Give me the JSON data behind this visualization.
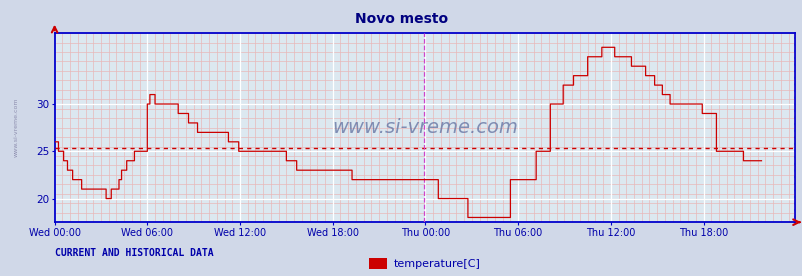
{
  "title": "Novo mesto",
  "title_color": "#000080",
  "title_fontsize": 10,
  "bg_color": "#d0d8e8",
  "plot_bg_color": "#dce8f0",
  "grid_color_major": "#ffffff",
  "grid_color_minor": "#e8b8b8",
  "line_color": "#cc0000",
  "axis_color": "#0000cc",
  "text_color": "#0000aa",
  "watermark_color": "#8888aa",
  "dotted_line_color": "#cc0000",
  "vline_color": "#cc44cc",
  "xticklabels": [
    "Wed 00:00",
    "Wed 06:00",
    "Wed 12:00",
    "Wed 18:00",
    "Thu 00:00",
    "Thu 06:00",
    "Thu 12:00",
    "Thu 18:00"
  ],
  "yticks": [
    20,
    25,
    30
  ],
  "ylim_min": 17.5,
  "ylim_max": 37.5,
  "xlim": [
    0,
    575
  ],
  "x_tick_positions": [
    0,
    72,
    144,
    216,
    288,
    360,
    432,
    504
  ],
  "dotted_hline_y": 25.3,
  "vline_x": 287,
  "vline_x2": 575,
  "footer_left": "CURRENT AND HISTORICAL DATA",
  "legend_label": "temperature[C]",
  "legend_color": "#cc0000",
  "watermark": "www.si-vreme.com",
  "sidewatermark": "www.si-vreme.com",
  "temperature_data": [
    26,
    26,
    26,
    25,
    25,
    25,
    25,
    24,
    24,
    24,
    23,
    23,
    23,
    23,
    22,
    22,
    22,
    22,
    22,
    22,
    22,
    21,
    21,
    21,
    21,
    21,
    21,
    21,
    21,
    21,
    21,
    21,
    21,
    21,
    21,
    21,
    21,
    21,
    21,
    21,
    20,
    20,
    20,
    20,
    21,
    21,
    21,
    21,
    21,
    21,
    22,
    22,
    23,
    23,
    23,
    23,
    24,
    24,
    24,
    24,
    24,
    24,
    25,
    25,
    25,
    25,
    25,
    25,
    25,
    25,
    25,
    25,
    30,
    30,
    31,
    31,
    31,
    31,
    30,
    30,
    30,
    30,
    30,
    30,
    30,
    30,
    30,
    30,
    30,
    30,
    30,
    30,
    30,
    30,
    30,
    30,
    29,
    29,
    29,
    29,
    29,
    29,
    29,
    29,
    28,
    28,
    28,
    28,
    28,
    28,
    28,
    27,
    27,
    27,
    27,
    27,
    27,
    27,
    27,
    27,
    27,
    27,
    27,
    27,
    27,
    27,
    27,
    27,
    27,
    27,
    27,
    27,
    27,
    27,
    27,
    26,
    26,
    26,
    26,
    26,
    26,
    26,
    26,
    25,
    25,
    25,
    25,
    25,
    25,
    25,
    25,
    25,
    25,
    25,
    25,
    25,
    25,
    25,
    25,
    25,
    25,
    25,
    25,
    25,
    25,
    25,
    25,
    25,
    25,
    25,
    25,
    25,
    25,
    25,
    25,
    25,
    25,
    25,
    25,
    25,
    24,
    24,
    24,
    24,
    24,
    24,
    24,
    24,
    23,
    23,
    23,
    23,
    23,
    23,
    23,
    23,
    23,
    23,
    23,
    23,
    23,
    23,
    23,
    23,
    23,
    23,
    23,
    23,
    23,
    23,
    23,
    23,
    23,
    23,
    23,
    23,
    23,
    23,
    23,
    23,
    23,
    23,
    23,
    23,
    23,
    23,
    23,
    23,
    23,
    23,
    23,
    22,
    22,
    22,
    22,
    22,
    22,
    22,
    22,
    22,
    22,
    22,
    22,
    22,
    22,
    22,
    22,
    22,
    22,
    22,
    22,
    22,
    22,
    22,
    22,
    22,
    22,
    22,
    22,
    22,
    22,
    22,
    22,
    22,
    22,
    22,
    22,
    22,
    22,
    22,
    22,
    22,
    22,
    22,
    22,
    22,
    22,
    22,
    22,
    22,
    22,
    22,
    22,
    22,
    22,
    22,
    22,
    22,
    22,
    22,
    22,
    22,
    22,
    22,
    22,
    22,
    22,
    22,
    20,
    20,
    20,
    20,
    20,
    20,
    20,
    20,
    20,
    20,
    20,
    20,
    20,
    20,
    20,
    20,
    20,
    20,
    20,
    20,
    20,
    20,
    20,
    18,
    18,
    18,
    18,
    18,
    18,
    18,
    18,
    18,
    18,
    18,
    18,
    18,
    18,
    18,
    18,
    18,
    18,
    18,
    18,
    18,
    18,
    18,
    18,
    18,
    18,
    18,
    18,
    18,
    18,
    18,
    18,
    18,
    22,
    22,
    22,
    22,
    22,
    22,
    22,
    22,
    22,
    22,
    22,
    22,
    22,
    22,
    22,
    22,
    22,
    22,
    22,
    22,
    25,
    25,
    25,
    25,
    25,
    25,
    25,
    25,
    25,
    25,
    25,
    30,
    30,
    30,
    30,
    30,
    30,
    30,
    30,
    30,
    30,
    32,
    32,
    32,
    32,
    32,
    32,
    32,
    32,
    33,
    33,
    33,
    33,
    33,
    33,
    33,
    33,
    33,
    33,
    33,
    35,
    35,
    35,
    35,
    35,
    35,
    35,
    35,
    35,
    35,
    35,
    36,
    36,
    36,
    36,
    36,
    36,
    36,
    36,
    36,
    36,
    35,
    35,
    35,
    35,
    35,
    35,
    35,
    35,
    35,
    35,
    35,
    35,
    35,
    34,
    34,
    34,
    34,
    34,
    34,
    34,
    34,
    34,
    34,
    34,
    33,
    33,
    33,
    33,
    33,
    33,
    33,
    32,
    32,
    32,
    32,
    32,
    32,
    31,
    31,
    31,
    31,
    31,
    31,
    30,
    30,
    30,
    30,
    30,
    30,
    30,
    30,
    30,
    30,
    30,
    30,
    30,
    30,
    30,
    30,
    30,
    30,
    30,
    30,
    30,
    30,
    30,
    30,
    30,
    29,
    29,
    29,
    29,
    29,
    29,
    29,
    29,
    29,
    29,
    29,
    25,
    25,
    25,
    25,
    25,
    25,
    25,
    25,
    25,
    25,
    25,
    25,
    25,
    25,
    25,
    25,
    25,
    25,
    25,
    25,
    25,
    24,
    24,
    24,
    24,
    24,
    24,
    24,
    24,
    24,
    24,
    24,
    24,
    24,
    24,
    24
  ]
}
